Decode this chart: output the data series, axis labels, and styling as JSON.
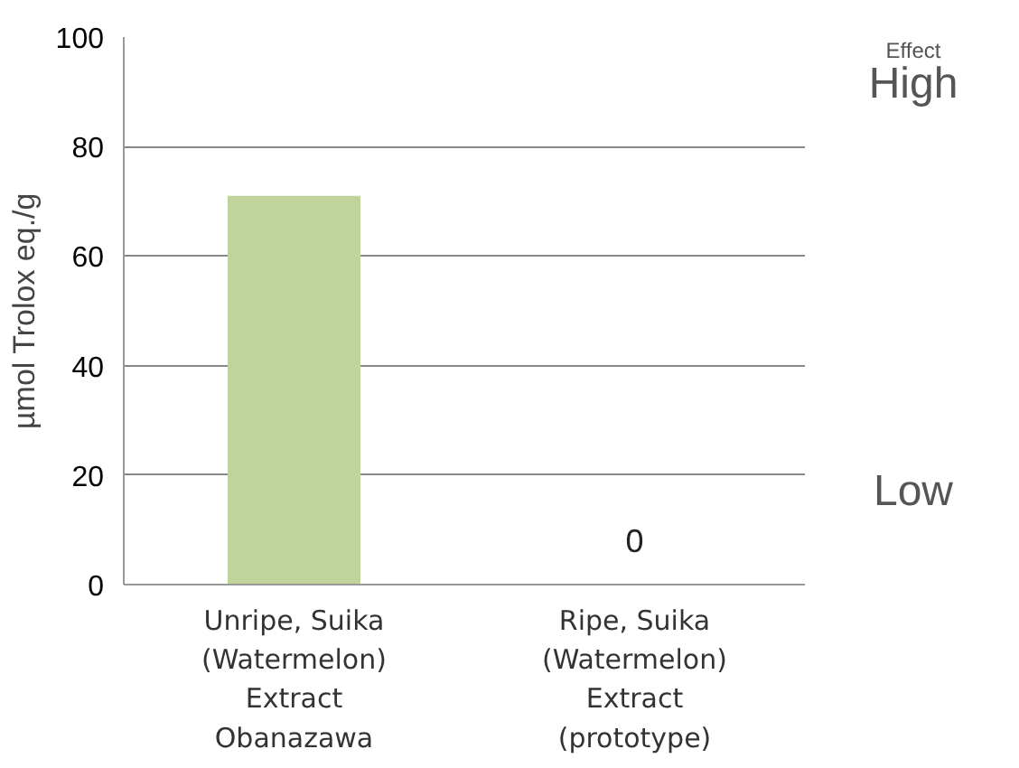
{
  "chart_data": {
    "type": "bar",
    "ylabel": "µmol Trolox eq./g",
    "categories": [
      "Unripe, Suika\n(Watermelon)\nExtract\nObanazawa",
      "Ripe, Suika\n(Watermelon)\nExtract\n(prototype)"
    ],
    "values": [
      71,
      0
    ],
    "value_labels": [
      null,
      "0"
    ],
    "color": "#c0d39a",
    "ylim": [
      0,
      100
    ],
    "yticks": [
      0,
      20,
      40,
      60,
      80,
      100
    ],
    "grid": "y",
    "annotations": [
      "Effect",
      "High",
      "Low"
    ]
  }
}
